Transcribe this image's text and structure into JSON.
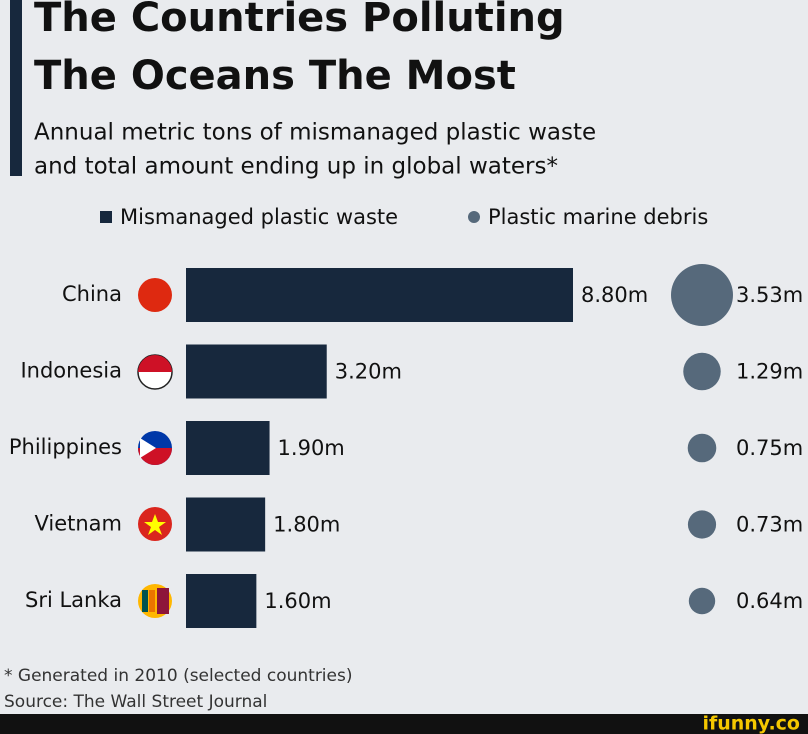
{
  "chart_data": {
    "type": "bar",
    "title_lines": [
      "The Countries Polluting",
      "The Oceans The Most"
    ],
    "subtitle_lines": [
      "Annual metric tons of mismanaged plastic waste",
      "and total amount ending up in global waters*"
    ],
    "categories": [
      "China",
      "Indonesia",
      "Philippines",
      "Vietnam",
      "Sri Lanka"
    ],
    "series": [
      {
        "name": "Mismanaged plastic waste",
        "color": "#17283d",
        "type": "bar",
        "values": [
          8.8,
          3.2,
          1.9,
          1.8,
          1.6
        ],
        "value_labels": [
          "8.80m",
          "3.20m",
          "1.90m",
          "1.80m",
          "1.60m"
        ]
      },
      {
        "name": "Plastic marine debris",
        "color": "#56697b",
        "type": "bubble",
        "values": [
          3.53,
          1.29,
          0.75,
          0.73,
          0.64
        ],
        "value_labels": [
          "3.53m",
          "1.29m",
          "0.75m",
          "0.73m",
          "0.64m"
        ]
      }
    ],
    "footnote": "* Generated in 2010 (selected countries)",
    "source": "Source: The Wall Street Journal",
    "watermark": "ifunny.co"
  }
}
